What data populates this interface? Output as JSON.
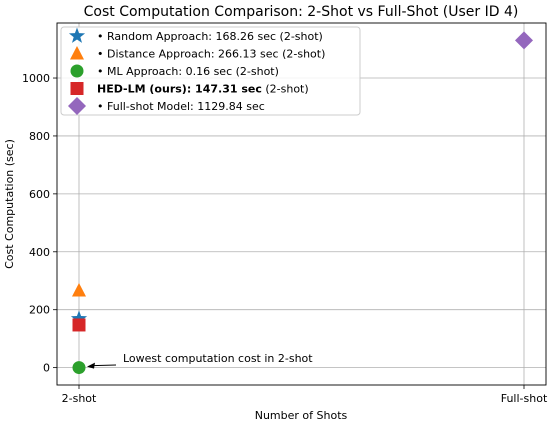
{
  "chart_data": {
    "type": "scatter",
    "title": "Cost Computation Comparison: 2-Shot vs Full-Shot (User ID 4)",
    "xlabel": "Number of Shots",
    "ylabel": "Cost Computation (sec)",
    "categories": [
      "2-shot",
      "Full-shot"
    ],
    "ylim": [
      -60,
      1190
    ],
    "yticks": [
      0,
      200,
      400,
      600,
      800,
      1000
    ],
    "grid": true,
    "legend_position": "top-left",
    "series": [
      {
        "category": "2-shot",
        "value": 168.26,
        "marker": "star",
        "color": "#1f77b4",
        "legend_prefix": "• ",
        "legend_bold": "",
        "legend_suffix": "Random Approach: 168.26 sec (2-shot)"
      },
      {
        "category": "2-shot",
        "value": 266.13,
        "marker": "triangle",
        "color": "#ff7f0e",
        "legend_prefix": "• ",
        "legend_bold": "",
        "legend_suffix": "Distance Approach: 266.13 sec (2-shot)"
      },
      {
        "category": "2-shot",
        "value": 0.16,
        "marker": "circle",
        "color": "#2ca02c",
        "legend_prefix": "• ",
        "legend_bold": "",
        "legend_suffix": "ML Approach: 0.16 sec (2-shot)"
      },
      {
        "category": "2-shot",
        "value": 147.31,
        "marker": "square",
        "color": "#d62728",
        "legend_prefix": "",
        "legend_bold": "HED-LM (ours): 147.31 sec",
        "legend_suffix": " (2-shot)"
      },
      {
        "category": "Full-shot",
        "value": 1129.84,
        "marker": "diamond",
        "color": "#9467bd",
        "legend_prefix": "• ",
        "legend_bold": "",
        "legend_suffix": "Full-shot Model: 1129.84 sec"
      }
    ],
    "annotations": [
      {
        "text": "Lowest computation cost in 2-shot",
        "target_category": "2-shot",
        "target_value": 0.16
      }
    ]
  }
}
